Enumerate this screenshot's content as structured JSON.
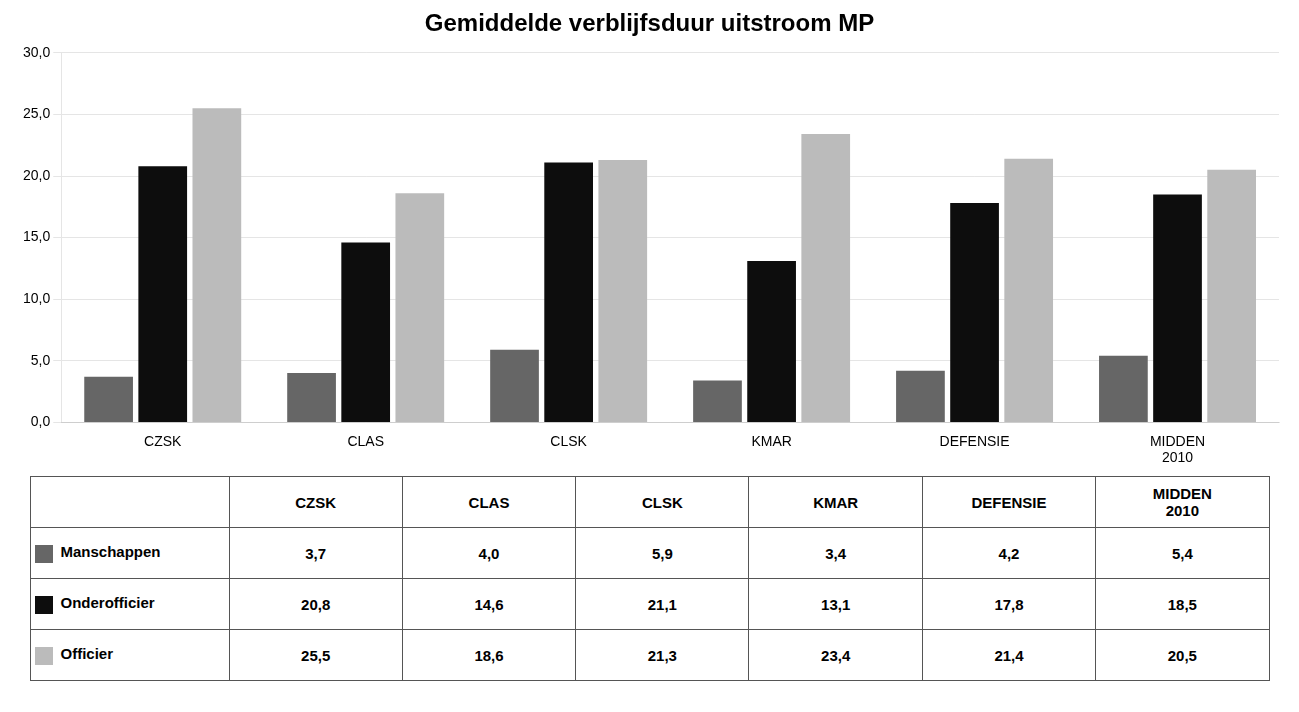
{
  "chart_data": {
    "type": "bar",
    "title": "Gemiddelde verblijfsduur uitstroom MP",
    "categories": [
      "CZSK",
      "CLAS",
      "CLSK",
      "KMAR",
      "DEFENSIE",
      "MIDDEN\n2010"
    ],
    "series": [
      {
        "name": "Manschappen",
        "color": "#666666",
        "values": [
          3.7,
          4.0,
          5.9,
          3.4,
          4.2,
          5.4
        ],
        "value_labels": [
          "3,7",
          "4,0",
          "5,9",
          "3,4",
          "4,2",
          "5,4"
        ]
      },
      {
        "name": "Onderofficier",
        "color": "#0d0d0d",
        "values": [
          20.8,
          14.6,
          21.1,
          13.1,
          17.8,
          18.5
        ],
        "value_labels": [
          "20,8",
          "14,6",
          "21,1",
          "13,1",
          "17,8",
          "18,5"
        ]
      },
      {
        "name": "Officier",
        "color": "#bbbbbb",
        "values": [
          25.5,
          18.6,
          21.3,
          23.4,
          21.4,
          20.5
        ],
        "value_labels": [
          "25,5",
          "18,6",
          "21,3",
          "23,4",
          "21,4",
          "20,5"
        ]
      }
    ],
    "ylim": [
      0,
      30
    ],
    "yticks": [
      {
        "value": 0,
        "label": "0,0"
      },
      {
        "value": 5,
        "label": "5,0"
      },
      {
        "value": 10,
        "label": "10,0"
      },
      {
        "value": 15,
        "label": "15,0"
      },
      {
        "value": 20,
        "label": "20,0"
      },
      {
        "value": 25,
        "label": "25,0"
      },
      {
        "value": 30,
        "label": "30,0"
      }
    ],
    "grid": true
  }
}
